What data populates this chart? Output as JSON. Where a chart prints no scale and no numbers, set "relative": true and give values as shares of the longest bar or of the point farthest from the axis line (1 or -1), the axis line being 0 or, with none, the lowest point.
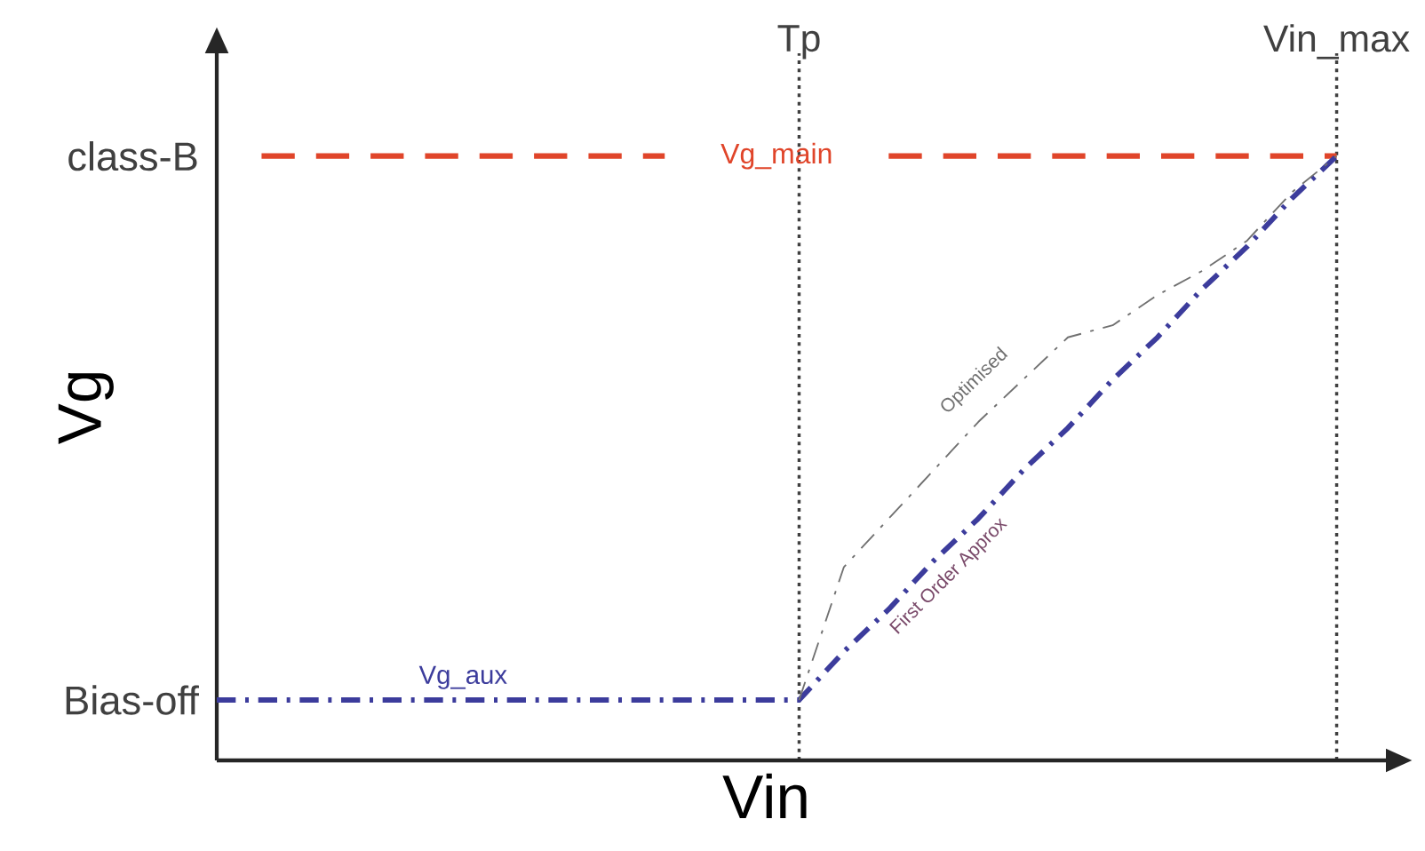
{
  "chart_data": {
    "type": "line",
    "xlabel": "Vin",
    "ylabel": "Vg",
    "relative": true,
    "categories": [
      null,
      null,
      null,
      null,
      null,
      null,
      null,
      null,
      null,
      null,
      null,
      null,
      null,
      "Tp",
      null,
      null,
      null,
      null,
      null,
      null,
      null,
      null,
      null,
      null,
      null,
      "Vin_max"
    ],
    "series": [
      {
        "name": "Vg_main",
        "color": "#e0452a",
        "line_style": "dashed",
        "values": [
          null,
          1,
          1,
          1,
          1,
          1,
          1,
          1,
          1,
          1,
          1,
          null,
          null,
          null,
          null,
          1,
          1,
          1,
          1,
          1,
          1,
          1,
          1,
          1,
          1,
          1
        ]
      },
      {
        "name": "Vg_aux",
        "color": "#3c3c9c",
        "line_style": "dashdot",
        "values": [
          0.1,
          0.1,
          0.1,
          0.1,
          0.1,
          0.1,
          0.1,
          0.1,
          0.1,
          0.1,
          0.1,
          0.1,
          0.1,
          0.1,
          0.18,
          0.25,
          0.33,
          0.4,
          0.48,
          0.55,
          0.63,
          0.7,
          0.78,
          0.85,
          0.93,
          1
        ]
      },
      {
        "name": "Optimised",
        "color": "#707070",
        "line_style": "dashdot",
        "values": [
          null,
          null,
          null,
          null,
          null,
          null,
          null,
          null,
          null,
          null,
          null,
          null,
          null,
          0.1,
          0.32,
          0.4,
          0.48,
          0.56,
          0.63,
          0.7,
          0.72,
          0.77,
          0.81,
          0.86,
          0.94,
          1
        ]
      }
    ],
    "annotations": [
      "class-B",
      "Bias-off",
      "First Order Approx"
    ],
    "grid": "x"
  }
}
